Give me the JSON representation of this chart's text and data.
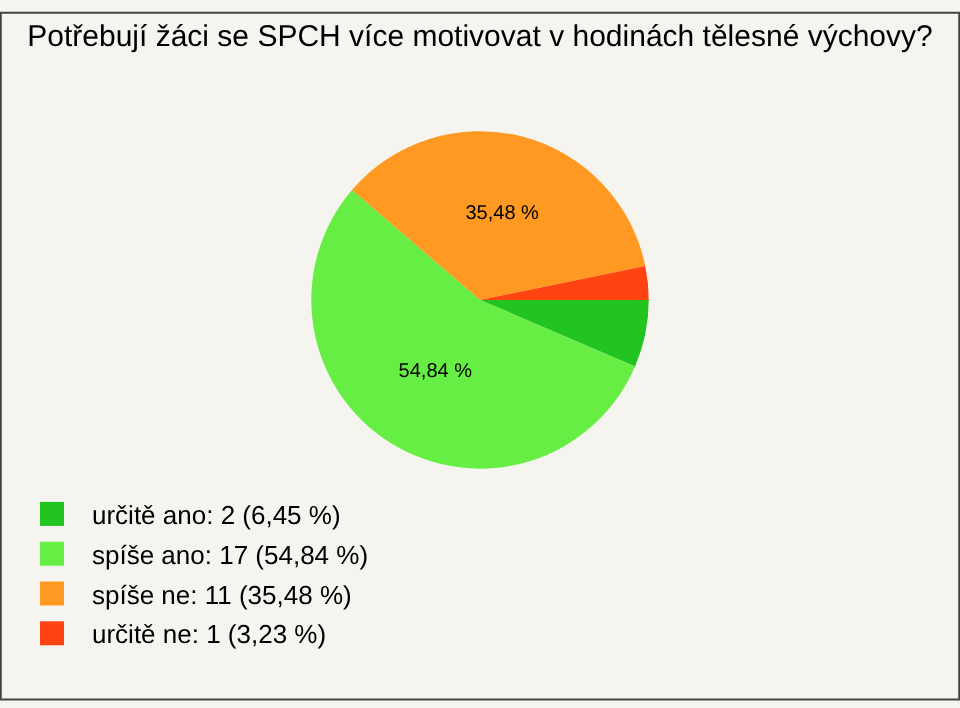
{
  "chart_data": {
    "type": "pie",
    "title": "Potřebují žáci se SPCH více motivovat v hodinách tělesné výchovy?",
    "categories": [
      "určitě ano: 2 (6,45 %)",
      "spíše ano: 17 (54,84 %)",
      "spíše ne: 11 (35,48 %)",
      "určitě ne: 1 (3,23 %)"
    ],
    "values": [
      6.45,
      54.84,
      35.48,
      3.23
    ],
    "colors": [
      "#22c422",
      "#66ee44",
      "#ff9922",
      "#ff4411"
    ],
    "value_labels": [
      null,
      "54,84 %",
      "35,48 %",
      null
    ],
    "legend": "bottom left"
  }
}
